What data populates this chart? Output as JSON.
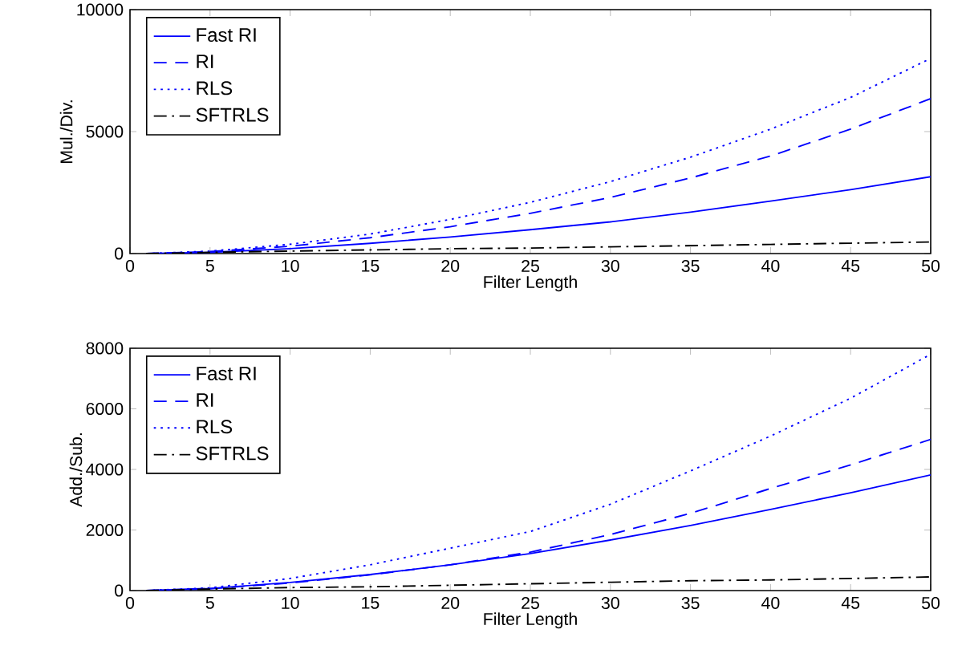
{
  "chart_data": [
    {
      "type": "line",
      "xlabel": "Filter Length",
      "ylabel": "Mul./Div.",
      "x": [
        1,
        5,
        10,
        15,
        20,
        25,
        30,
        35,
        40,
        45,
        50
      ],
      "xlim": [
        0,
        50
      ],
      "ylim": [
        0,
        10000
      ],
      "xticks": [
        0,
        5,
        10,
        15,
        20,
        25,
        30,
        35,
        40,
        45,
        50
      ],
      "yticks": [
        0,
        5000,
        10000
      ],
      "legend": "top left",
      "grid": false,
      "series": [
        {
          "name": "Fast RI",
          "color": "#0000ff",
          "line_style": "solid",
          "values": [
            0,
            50,
            200,
            420,
            680,
            980,
            1300,
            1700,
            2150,
            2620,
            3150
          ]
        },
        {
          "name": "RI",
          "color": "#0000ff",
          "line_style": "dashed",
          "values": [
            0,
            80,
            300,
            650,
            1100,
            1650,
            2300,
            3100,
            4000,
            5100,
            6350
          ]
        },
        {
          "name": "RLS",
          "color": "#0000ff",
          "line_style": "dotted",
          "values": [
            0,
            100,
            380,
            800,
            1400,
            2100,
            2950,
            3950,
            5100,
            6400,
            8000
          ]
        },
        {
          "name": "SFTRLS",
          "color": "#000000",
          "line_style": "dashdot",
          "values": [
            0,
            50,
            100,
            150,
            200,
            225,
            275,
            325,
            375,
            425,
            475
          ]
        }
      ]
    },
    {
      "type": "line",
      "xlabel": "Filter Length",
      "ylabel": "Add./Sub.",
      "x": [
        1,
        5,
        10,
        15,
        20,
        25,
        30,
        35,
        40,
        45,
        50
      ],
      "xlim": [
        0,
        50
      ],
      "ylim": [
        0,
        8000
      ],
      "xticks": [
        0,
        5,
        10,
        15,
        20,
        25,
        30,
        35,
        40,
        45,
        50
      ],
      "yticks": [
        0,
        2000,
        4000,
        6000,
        8000
      ],
      "legend": "top left",
      "grid": false,
      "series": [
        {
          "name": "Fast RI",
          "color": "#0000ff",
          "line_style": "solid",
          "values": [
            0,
            70,
            270,
            530,
            850,
            1220,
            1670,
            2150,
            2680,
            3230,
            3820
          ]
        },
        {
          "name": "RI",
          "color": "#0000ff",
          "line_style": "dashed",
          "values": [
            0,
            60,
            250,
            520,
            850,
            1270,
            1850,
            2550,
            3370,
            4150,
            4990
          ]
        },
        {
          "name": "RLS",
          "color": "#0000ff",
          "line_style": "dotted",
          "values": [
            0,
            90,
            400,
            850,
            1400,
            1950,
            2850,
            3950,
            5100,
            6350,
            7800
          ]
        },
        {
          "name": "SFTRLS",
          "color": "#000000",
          "line_style": "dashdot",
          "values": [
            0,
            50,
            100,
            125,
            175,
            225,
            275,
            325,
            350,
            400,
            450
          ]
        }
      ]
    }
  ]
}
